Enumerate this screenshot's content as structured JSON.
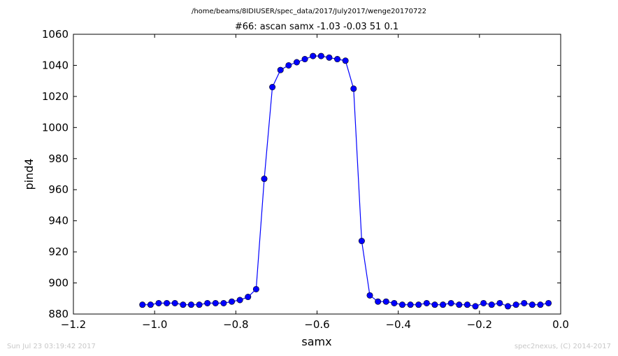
{
  "figure": {
    "suptitle": "/home/beams/8IDIUSER/spec_data/2017/July2017/wenge20170722",
    "footer_left": "Sun Jul 23 03:19:42 2017",
    "footer_right": "spec2nexus, (C) 2014-2017"
  },
  "colors": {
    "series": "#0000ff",
    "axes": "#000000",
    "footer": "#c8c8c8"
  },
  "chart_data": {
    "type": "line",
    "title": "#66: ascan  samx -1.03 -0.03  51 0.1",
    "xlabel": "samx",
    "ylabel": "pind4",
    "xlim": [
      -1.2,
      0.0
    ],
    "ylim": [
      880,
      1060
    ],
    "xticks": [
      -1.2,
      -1.0,
      -0.8,
      -0.6,
      -0.4,
      -0.2,
      0.0
    ],
    "xtick_labels": [
      "−1.2",
      "−1.0",
      "−0.8",
      "−0.6",
      "−0.4",
      "−0.2",
      "0.0"
    ],
    "yticks": [
      880,
      900,
      920,
      940,
      960,
      980,
      1000,
      1020,
      1040,
      1060
    ],
    "ytick_labels": [
      "880",
      "900",
      "920",
      "940",
      "960",
      "980",
      "1000",
      "1020",
      "1040",
      "1060"
    ],
    "grid": false,
    "marker": "circle",
    "series": [
      {
        "x": [
          -1.03,
          -1.01,
          -0.99,
          -0.97,
          -0.95,
          -0.93,
          -0.91,
          -0.89,
          -0.87,
          -0.85,
          -0.83,
          -0.81,
          -0.79,
          -0.77,
          -0.75,
          -0.73,
          -0.71,
          -0.69,
          -0.67,
          -0.65,
          -0.63,
          -0.61,
          -0.59,
          -0.57,
          -0.55,
          -0.53,
          -0.51,
          -0.49,
          -0.47,
          -0.45,
          -0.43,
          -0.41,
          -0.39,
          -0.37,
          -0.35,
          -0.33,
          -0.31,
          -0.29,
          -0.27,
          -0.25,
          -0.23,
          -0.21,
          -0.19,
          -0.17,
          -0.15,
          -0.13,
          -0.11,
          -0.09,
          -0.07,
          -0.05,
          -0.03
        ],
        "y": [
          886,
          886,
          887,
          887,
          887,
          886,
          886,
          886,
          887,
          887,
          887,
          888,
          889,
          891,
          896,
          967,
          1026,
          1037,
          1040,
          1042,
          1044,
          1046,
          1046,
          1045,
          1044,
          1043,
          1025,
          927,
          892,
          888,
          888,
          887,
          886,
          886,
          886,
          887,
          886,
          886,
          887,
          886,
          886,
          885,
          887,
          886,
          887,
          885,
          886,
          887,
          886,
          886,
          887
        ]
      }
    ]
  }
}
